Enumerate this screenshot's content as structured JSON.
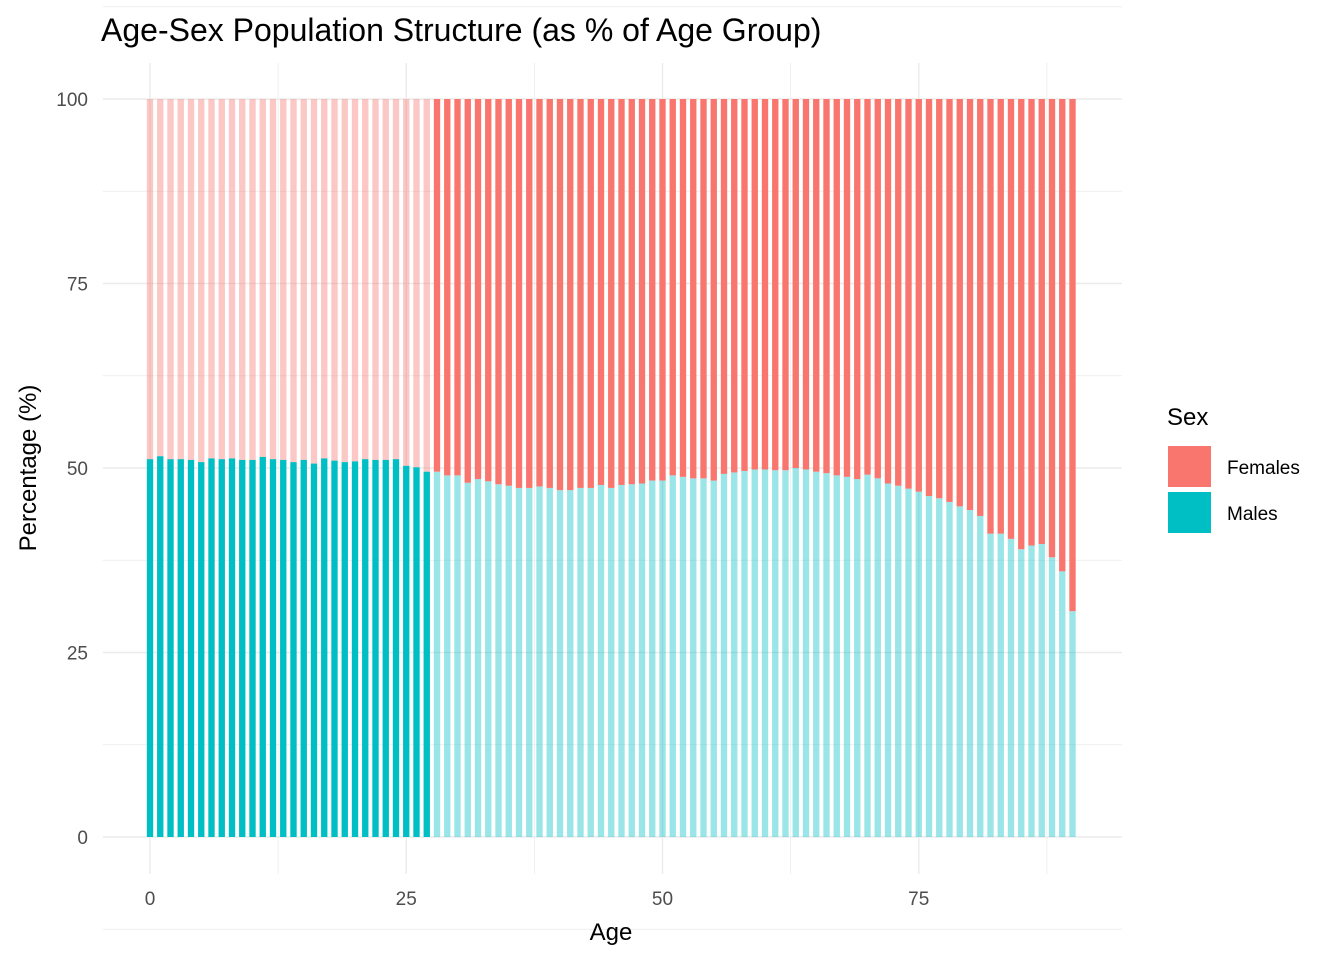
{
  "chart_data": {
    "type": "bar",
    "stacked": true,
    "title": "Age-Sex Population Structure (as % of Age Group)",
    "xlabel": "Age",
    "ylabel": "Percentage (%)",
    "xlim": [
      0,
      90
    ],
    "ylim": [
      0,
      100
    ],
    "x_ticks": [
      0,
      25,
      50,
      75
    ],
    "y_ticks": [
      0,
      25,
      50,
      75,
      100
    ],
    "grid": true,
    "legend": {
      "title": "Sex",
      "position": "right",
      "entries": [
        {
          "name": "Females",
          "color": "#F8766D"
        },
        {
          "name": "Males",
          "color": "#00BFC4"
        }
      ]
    },
    "highlight": {
      "from_age": 0,
      "to_age": 27,
      "highlighted_series": "Males",
      "faded_alpha": 0.4
    },
    "x": [
      0,
      1,
      2,
      3,
      4,
      5,
      6,
      7,
      8,
      9,
      10,
      11,
      12,
      13,
      14,
      15,
      16,
      17,
      18,
      19,
      20,
      21,
      22,
      23,
      24,
      25,
      26,
      27,
      28,
      29,
      30,
      31,
      32,
      33,
      34,
      35,
      36,
      37,
      38,
      39,
      40,
      41,
      42,
      43,
      44,
      45,
      46,
      47,
      48,
      49,
      50,
      51,
      52,
      53,
      54,
      55,
      56,
      57,
      58,
      59,
      60,
      61,
      62,
      63,
      64,
      65,
      66,
      67,
      68,
      69,
      70,
      71,
      72,
      73,
      74,
      75,
      76,
      77,
      78,
      79,
      80,
      81,
      82,
      83,
      84,
      85,
      86,
      87,
      88,
      89,
      90
    ],
    "series": [
      {
        "name": "Males",
        "color": "#00BFC4",
        "values": [
          51.2,
          51.6,
          51.2,
          51.2,
          51.1,
          50.8,
          51.3,
          51.2,
          51.3,
          51.1,
          51.1,
          51.5,
          51.2,
          51.1,
          50.8,
          51.1,
          50.6,
          51.3,
          51.0,
          50.8,
          50.9,
          51.2,
          51.1,
          51.1,
          51.2,
          50.3,
          50.1,
          49.5,
          49.5,
          49.0,
          49.0,
          48.0,
          48.5,
          48.2,
          47.8,
          47.6,
          47.3,
          47.3,
          47.5,
          47.3,
          47.0,
          47.0,
          47.3,
          47.3,
          47.7,
          47.3,
          47.7,
          47.8,
          47.9,
          48.3,
          48.3,
          49.0,
          48.8,
          48.6,
          48.6,
          48.3,
          49.2,
          49.4,
          49.6,
          49.8,
          49.8,
          49.7,
          49.7,
          50.0,
          49.8,
          49.5,
          49.3,
          49.0,
          48.8,
          48.5,
          49.1,
          48.6,
          47.9,
          47.6,
          47.2,
          46.8,
          46.2,
          45.9,
          45.4,
          44.8,
          44.3,
          43.5,
          41.1,
          41.1,
          40.4,
          39.0,
          39.5,
          39.7,
          37.9,
          36.0,
          30.6
        ]
      },
      {
        "name": "Females",
        "color": "#F8766D",
        "values": [
          48.8,
          48.4,
          48.8,
          48.8,
          48.9,
          49.2,
          48.7,
          48.8,
          48.7,
          48.9,
          48.9,
          48.5,
          48.8,
          48.9,
          49.2,
          48.9,
          49.4,
          48.7,
          49.0,
          49.2,
          49.1,
          48.8,
          48.9,
          48.9,
          48.8,
          49.7,
          49.9,
          50.5,
          50.5,
          51.0,
          51.0,
          52.0,
          51.5,
          51.8,
          52.2,
          52.4,
          52.7,
          52.7,
          52.5,
          52.7,
          53.0,
          53.0,
          52.7,
          52.7,
          52.3,
          52.7,
          52.3,
          52.2,
          52.1,
          51.7,
          51.7,
          51.0,
          51.2,
          51.4,
          51.4,
          51.7,
          50.8,
          50.6,
          50.4,
          50.2,
          50.2,
          50.3,
          50.3,
          50.0,
          50.2,
          50.5,
          50.7,
          51.0,
          51.2,
          51.5,
          50.9,
          51.4,
          52.1,
          52.4,
          52.8,
          53.2,
          53.8,
          54.1,
          54.6,
          55.2,
          55.7,
          56.5,
          58.9,
          58.9,
          59.6,
          61.0,
          60.5,
          60.3,
          62.1,
          64.0,
          69.4
        ]
      }
    ]
  }
}
